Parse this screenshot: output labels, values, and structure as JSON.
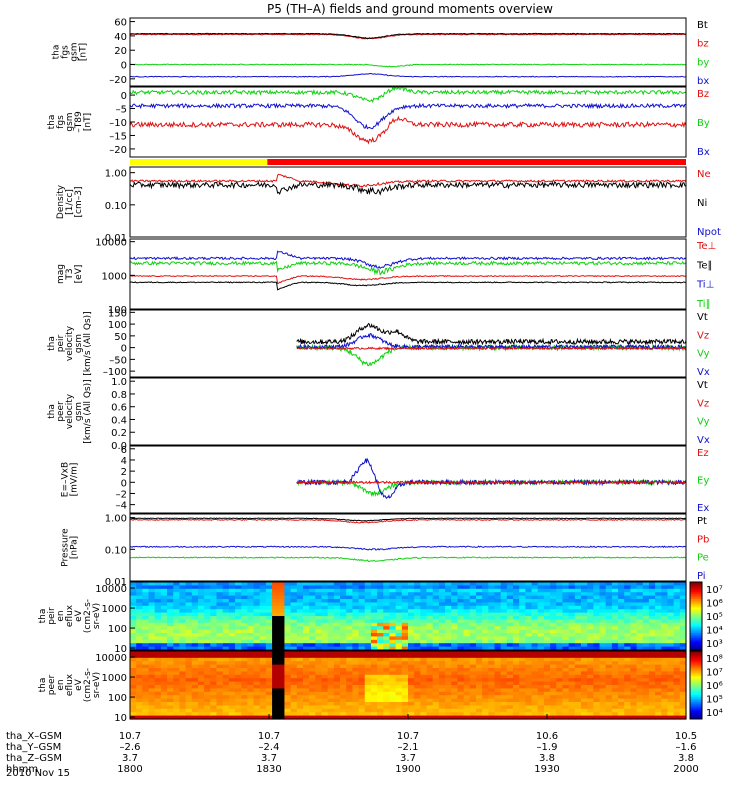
{
  "title": "P5 (TH–A) fields and ground moments overview",
  "date_label": "2010 Nov 15",
  "colors": {
    "black": "#000000",
    "red": "#e01010",
    "green": "#10d010",
    "blue": "#1010d0",
    "yellow": "#ffff00",
    "bar_red": "#ff0000"
  },
  "chart_data": {
    "type": "line",
    "x_range": [
      "18:00",
      "20:00"
    ],
    "panels": [
      {
        "id": "fgs-gsm",
        "ylabel": [
          "tha",
          "fgs",
          "gsm",
          "[nT]"
        ],
        "ylim": [
          -30,
          65
        ],
        "ticks": [
          {
            "value": 60,
            "label": "60"
          },
          {
            "value": 40,
            "label": "40"
          },
          {
            "value": 20,
            "label": "20"
          },
          {
            "value": 0,
            "label": "0"
          },
          {
            "value": -20,
            "label": "–20"
          }
        ],
        "legend": [
          {
            "label": "Bt",
            "color": "#000000"
          },
          {
            "label": "bz",
            "color": "#e01010"
          },
          {
            "label": "by",
            "color": "#10d010"
          },
          {
            "label": "bx",
            "color": "#1010d0"
          }
        ],
        "series": [
          {
            "color": "#e01010",
            "base": 42,
            "noise": 0.6,
            "events": [
              {
                "t": 0.43,
                "w": 0.04,
                "a": -6
              }
            ]
          },
          {
            "color": "#000000",
            "base": 43,
            "noise": 0.5,
            "events": [
              {
                "t": 0.43,
                "w": 0.04,
                "a": -6
              }
            ]
          },
          {
            "color": "#10d010",
            "base": 0,
            "noise": 0.6,
            "events": [
              {
                "t": 0.47,
                "w": 0.03,
                "a": -3
              }
            ]
          },
          {
            "color": "#1010d0",
            "base": -17,
            "noise": 0.5,
            "events": [
              {
                "t": 0.43,
                "w": 0.04,
                "a": 4
              }
            ]
          }
        ]
      },
      {
        "id": "fgs-gsm-dtrnd",
        "ylabel": [
          "tha",
          "fgs",
          "gsm",
          "–T89",
          "[nT]"
        ],
        "ylim": [
          -23,
          3
        ],
        "ticks": [
          {
            "value": 0,
            "label": "0"
          },
          {
            "value": -5,
            "label": "–5"
          },
          {
            "value": -10,
            "label": "–10"
          },
          {
            "value": -15,
            "label": "–15"
          },
          {
            "value": -20,
            "label": "–20"
          }
        ],
        "legend": [
          {
            "label": "Bz",
            "color": "#e01010"
          },
          {
            "label": "By",
            "color": "#10d010"
          },
          {
            "label": "Bx",
            "color": "#1010d0"
          }
        ],
        "series": [
          {
            "color": "#10d010",
            "base": 1,
            "noise": 0.7,
            "events": [
              {
                "t": 0.43,
                "w": 0.03,
                "a": -3
              },
              {
                "t": 0.48,
                "w": 0.02,
                "a": 2
              }
            ]
          },
          {
            "color": "#1010d0",
            "base": -4,
            "noise": 0.7,
            "events": [
              {
                "t": 0.43,
                "w": 0.035,
                "a": -8
              }
            ]
          },
          {
            "color": "#e01010",
            "base": -11,
            "noise": 0.9,
            "events": [
              {
                "t": 0.43,
                "w": 0.035,
                "a": -6
              },
              {
                "t": 0.48,
                "w": 0.02,
                "a": 3
              }
            ]
          }
        ]
      },
      {
        "id": "density",
        "ylabel": [
          "Density",
          "[1/cc]",
          "[cm–3]"
        ],
        "log": true,
        "ylim": [
          0.01,
          1.5
        ],
        "ticks": [
          {
            "value": 1.0,
            "label": "1.00"
          },
          {
            "value": 0.1,
            "label": "0.10"
          },
          {
            "value": 0.01,
            "label": "0.01"
          }
        ],
        "legend": [
          {
            "label": "Ne",
            "color": "#e01010"
          },
          {
            "label": "Ni",
            "color": "#000000"
          },
          {
            "label": "Npot",
            "color": "#1010d0"
          }
        ],
        "series": [
          {
            "color": "#e01010",
            "base": 0.55,
            "noise": 0.04,
            "events": [
              {
                "t": 0.41,
                "w": 0.06,
                "a": -0.15
              }
            ]
          },
          {
            "color": "#000000",
            "base": 0.42,
            "noise": 0.08,
            "events": [
              {
                "t": 0.44,
                "w": 0.04,
                "a": -0.15
              }
            ]
          }
        ]
      },
      {
        "id": "temperature",
        "ylabel": [
          "mag",
          "T3",
          "[eV]"
        ],
        "log": true,
        "ylim": [
          100,
          12000
        ],
        "ticks": [
          {
            "value": 10000,
            "label": "10000"
          },
          {
            "value": 1000,
            "label": "1000"
          },
          {
            "value": 100,
            "label": "100"
          }
        ],
        "legend": [
          {
            "label": "Te⊥",
            "color": "#e01010"
          },
          {
            "label": "Te∥",
            "color": "#000000"
          },
          {
            "label": "Ti⊥",
            "color": "#1010d0"
          },
          {
            "label": "Ti∥",
            "color": "#10d010"
          }
        ],
        "series": [
          {
            "color": "#1010d0",
            "base": 3200,
            "noise": 250,
            "events": [
              {
                "t": 0.45,
                "w": 0.04,
                "a": -1400
              }
            ]
          },
          {
            "color": "#10d010",
            "base": 2300,
            "noise": 250,
            "events": [
              {
                "t": 0.45,
                "w": 0.04,
                "a": -1000
              }
            ]
          },
          {
            "color": "#e01010",
            "base": 950,
            "noise": 30,
            "events": [
              {
                "t": 0.42,
                "w": 0.05,
                "a": -200
              }
            ]
          },
          {
            "color": "#000000",
            "base": 620,
            "noise": 20,
            "events": [
              {
                "t": 0.42,
                "w": 0.05,
                "a": -120
              }
            ]
          }
        ]
      },
      {
        "id": "peir-velocity",
        "ylabel": [
          "tha",
          "peir",
          "velocity",
          "gsm",
          "[km/s (All Qs)]"
        ],
        "ylim": [
          -125,
          160
        ],
        "ticks": [
          {
            "value": 150,
            "label": "150"
          },
          {
            "value": 100,
            "label": "100"
          },
          {
            "value": 50,
            "label": "50"
          },
          {
            "value": 0,
            "label": "0"
          },
          {
            "value": -50,
            "label": "–50"
          },
          {
            "value": -100,
            "label": "–100"
          }
        ],
        "legend": [
          {
            "label": "Vt",
            "color": "#000000"
          },
          {
            "label": "Vz",
            "color": "#e01010"
          },
          {
            "label": "Vy",
            "color": "#10d010"
          },
          {
            "label": "Vx",
            "color": "#1010d0"
          }
        ],
        "series": [
          {
            "color": "#000000",
            "base": 25,
            "noise": 10,
            "events": [
              {
                "t": 0.43,
                "w": 0.03,
                "a": 70
              },
              {
                "t": 0.48,
                "w": 0.02,
                "a": 40
              }
            ]
          },
          {
            "color": "#10d010",
            "base": 0,
            "noise": 10,
            "events": [
              {
                "t": 0.43,
                "w": 0.03,
                "a": -70
              }
            ]
          },
          {
            "color": "#1010d0",
            "base": 3,
            "noise": 8,
            "events": [
              {
                "t": 0.43,
                "w": 0.03,
                "a": 50
              }
            ]
          },
          {
            "color": "#e01010",
            "base": -3,
            "noise": 4,
            "events": []
          }
        ]
      },
      {
        "id": "peer-velocity",
        "ylabel": [
          "tha",
          "peer",
          "velocity",
          "gsm",
          "[km/s (All Qs)]"
        ],
        "ylim": [
          0,
          1.05
        ],
        "ticks": [
          {
            "value": 1.0,
            "label": "1.0"
          },
          {
            "value": 0.8,
            "label": "0.8"
          },
          {
            "value": 0.6,
            "label": "0.6"
          },
          {
            "value": 0.4,
            "label": "0.4"
          },
          {
            "value": 0.2,
            "label": "0.2"
          },
          {
            "value": 0.0,
            "label": "0.0"
          }
        ],
        "legend": [
          {
            "label": "Vt",
            "color": "#000000"
          },
          {
            "label": "Vz",
            "color": "#e01010"
          },
          {
            "label": "Vy",
            "color": "#10d010"
          },
          {
            "label": "Vx",
            "color": "#1010d0"
          }
        ],
        "series": []
      },
      {
        "id": "e-field",
        "ylabel": [
          "E=–VxB",
          "[mV/m]"
        ],
        "ylim": [
          -5.5,
          6.5
        ],
        "ticks": [
          {
            "value": 6,
            "label": "6"
          },
          {
            "value": 4,
            "label": "4"
          },
          {
            "value": 2,
            "label": "2"
          },
          {
            "value": 0,
            "label": "0"
          },
          {
            "value": -2,
            "label": "–2"
          },
          {
            "value": -4,
            "label": "–4"
          }
        ],
        "legend": [
          {
            "label": "Ez",
            "color": "#e01010"
          },
          {
            "label": "Ey",
            "color": "#10d010"
          },
          {
            "label": "Ex",
            "color": "#1010d0"
          }
        ],
        "series": [
          {
            "color": "#10d010",
            "base": 0,
            "noise": 0.35,
            "events": [
              {
                "t": 0.44,
                "w": 0.03,
                "a": -2
              }
            ]
          },
          {
            "color": "#1010d0",
            "base": 0,
            "noise": 0.4,
            "events": [
              {
                "t": 0.425,
                "w": 0.02,
                "a": 4
              },
              {
                "t": 0.46,
                "w": 0.02,
                "a": -3
              }
            ]
          },
          {
            "color": "#e01010",
            "base": 0,
            "noise": 0.2,
            "events": []
          }
        ]
      },
      {
        "id": "pressure",
        "ylabel": [
          "Pressure",
          "[nPa]"
        ],
        "log": true,
        "ylim": [
          0.01,
          1.3
        ],
        "ticks": [
          {
            "value": 1.0,
            "label": "1.00"
          },
          {
            "value": 0.1,
            "label": "0.10"
          },
          {
            "value": 0.01,
            "label": "0.01"
          }
        ],
        "legend": [
          {
            "label": "Pt",
            "color": "#000000"
          },
          {
            "label": "Pb",
            "color": "#e01010"
          },
          {
            "label": "Pe",
            "color": "#10d010"
          },
          {
            "label": "Pi",
            "color": "#1010d0"
          }
        ],
        "series": [
          {
            "color": "#e01010",
            "base": 0.85,
            "noise": 0.03,
            "events": [
              {
                "t": 0.42,
                "w": 0.05,
                "a": -0.15
              }
            ]
          },
          {
            "color": "#000000",
            "base": 0.95,
            "noise": 0.02,
            "events": [
              {
                "t": 0.42,
                "w": 0.05,
                "a": -0.15
              }
            ]
          },
          {
            "color": "#1010d0",
            "base": 0.12,
            "noise": 0.005,
            "events": [
              {
                "t": 0.44,
                "w": 0.05,
                "a": -0.02
              }
            ]
          },
          {
            "color": "#10d010",
            "base": 0.055,
            "noise": 0.002,
            "events": [
              {
                "t": 0.44,
                "w": 0.05,
                "a": -0.012
              }
            ]
          }
        ]
      },
      {
        "id": "peir-spectrogram",
        "kind": "spectrogram",
        "ylabel": [
          "tha",
          "peir",
          "en",
          "eflux",
          "eV",
          "(cm2-s-",
          "sr-eV)"
        ],
        "log": true,
        "ylim": [
          8,
          20000
        ],
        "ticks": [
          {
            "value": 10000,
            "label": "10000"
          },
          {
            "value": 1000,
            "label": "1000"
          },
          {
            "value": 100,
            "label": "100"
          },
          {
            "value": 10,
            "label": "10"
          }
        ],
        "colorbar": [
          "10³",
          "10⁴",
          "10⁵",
          "10⁶",
          "10⁷"
        ]
      },
      {
        "id": "peer-spectrogram",
        "kind": "spectrogram",
        "ylabel": [
          "tha",
          "peer",
          "en",
          "eflux",
          "eV",
          "(cm2-s-",
          "sr-eV)"
        ],
        "log": true,
        "ylim": [
          8,
          20000
        ],
        "ticks": [
          {
            "value": 10000,
            "label": "10000"
          },
          {
            "value": 1000,
            "label": "1000"
          },
          {
            "value": 100,
            "label": "100"
          },
          {
            "value": 10,
            "label": "10"
          }
        ],
        "colorbar": [
          "10⁴",
          "10⁵",
          "10⁶",
          "10⁷",
          "10⁸"
        ]
      }
    ],
    "x_axis_rows": [
      {
        "label": "tha_X–GSM",
        "values": [
          "10.7",
          "10.7",
          "10.7",
          "10.6",
          "10.5"
        ]
      },
      {
        "label": "tha_Y–GSM",
        "values": [
          "–2.6",
          "–2.4",
          "–2.1",
          "–1.9",
          "–1.6"
        ]
      },
      {
        "label": "tha_Z–GSM",
        "values": [
          "3.7",
          "3.7",
          "3.7",
          "3.8",
          "3.8"
        ]
      },
      {
        "label": "hhmm",
        "values": [
          "1800",
          "1830",
          "1900",
          "1930",
          "2000"
        ]
      }
    ]
  }
}
